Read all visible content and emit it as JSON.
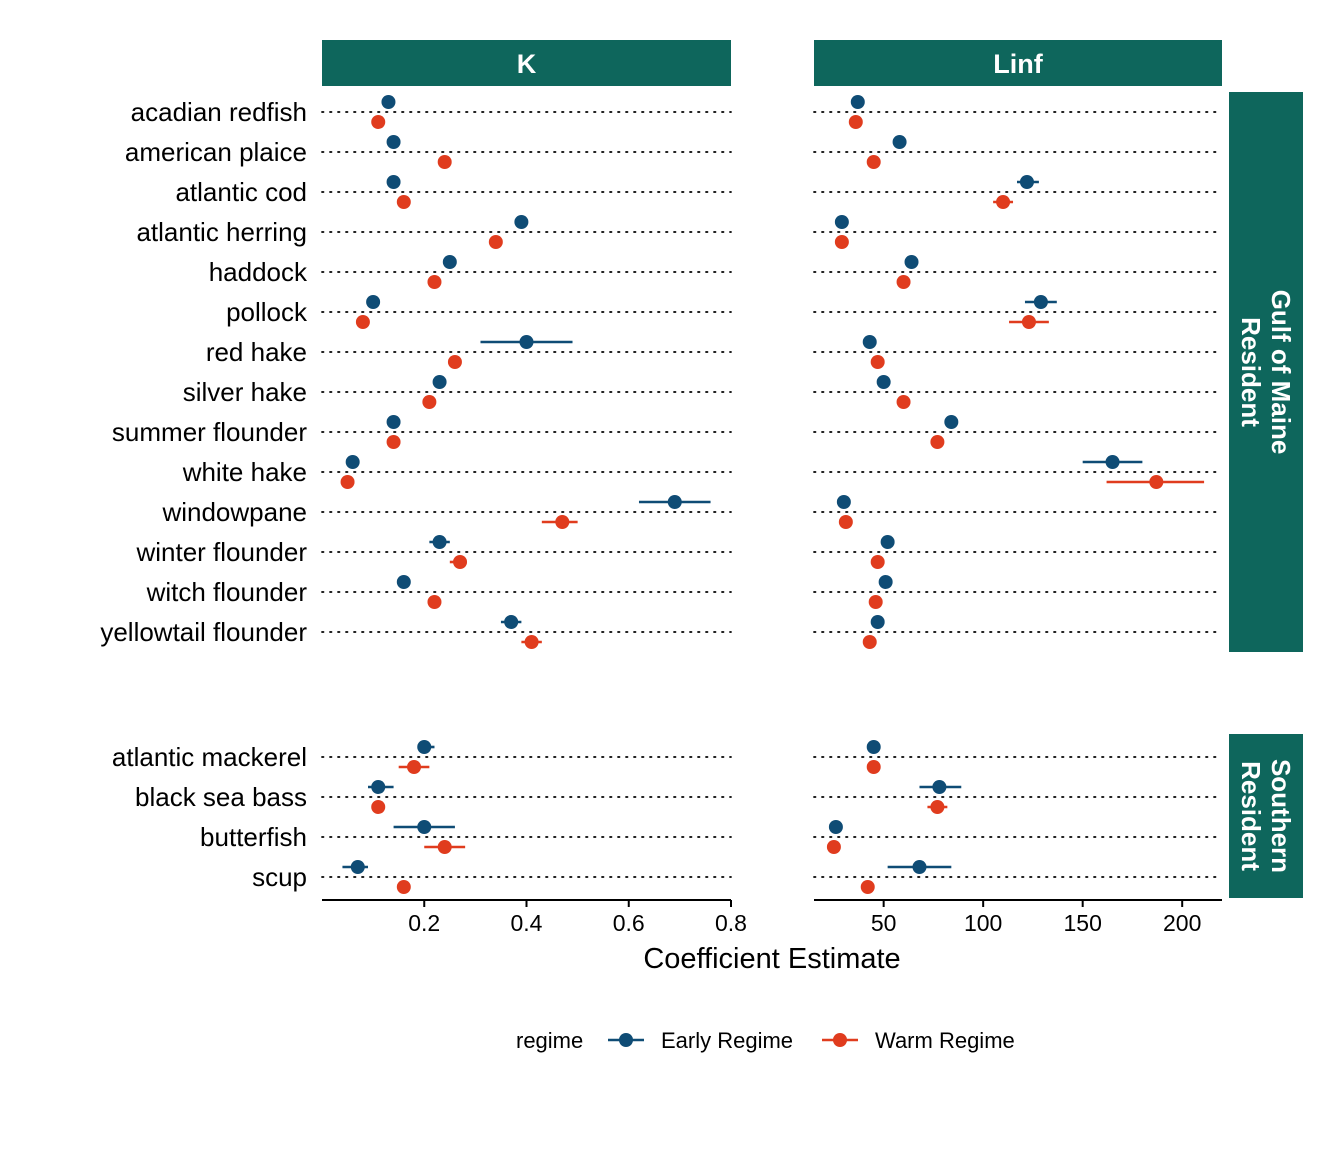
{
  "chart_data": {
    "type": "scatter",
    "subtype": "faceted dot plot with error bars",
    "xlabel": "Coefficient Estimate",
    "legend": {
      "title": "regime",
      "position": "bottom",
      "entries": [
        "Early Regime",
        "Warm Regime"
      ]
    },
    "colors": {
      "Early Regime": "#0f4c75",
      "Warm Regime": "#e03c1e",
      "strip": "#0e665c",
      "grid": "#000000"
    },
    "grid": "dotted horizontal per species",
    "columns": [
      {
        "name": "K",
        "xlim": [
          0.0,
          0.8
        ],
        "ticks": [
          0.2,
          0.4,
          0.6,
          0.8
        ],
        "tick_labels": [
          "0.2",
          "0.4",
          "0.6",
          "0.8"
        ]
      },
      {
        "name": "Linf",
        "xlim": [
          15,
          220
        ],
        "ticks": [
          50,
          100,
          150,
          200
        ],
        "tick_labels": [
          "50",
          "100",
          "150",
          "200"
        ]
      }
    ],
    "rows": [
      {
        "name": "Gulf of Maine Resident",
        "name_lines": [
          "Gulf of Maine",
          "Resident"
        ],
        "species": [
          "acadian redfish",
          "american plaice",
          "atlantic cod",
          "atlantic herring",
          "haddock",
          "pollock",
          "red hake",
          "silver hake",
          "summer flounder",
          "white hake",
          "windowpane",
          "winter flounder",
          "witch flounder",
          "yellowtail flounder"
        ]
      },
      {
        "name": "Southern Resident",
        "name_lines": [
          "Southern",
          "Resident"
        ],
        "species": [
          "atlantic mackerel",
          "black sea bass",
          "butterfish",
          "scup"
        ]
      }
    ],
    "series": [
      {
        "name": "Early Regime",
        "points": [
          {
            "species": "acadian redfish",
            "K": [
              0.13,
              0.13,
              0.14
            ],
            "Linf": [
              37,
              37,
              38
            ]
          },
          {
            "species": "american plaice",
            "K": [
              0.14,
              0.14,
              0.15
            ],
            "Linf": [
              58,
              57,
              59
            ]
          },
          {
            "species": "atlantic cod",
            "K": [
              0.14,
              0.14,
              0.15
            ],
            "Linf": [
              122,
              117,
              128
            ]
          },
          {
            "species": "atlantic herring",
            "K": [
              0.39,
              0.39,
              0.4
            ],
            "Linf": [
              29,
              29,
              30
            ]
          },
          {
            "species": "haddock",
            "K": [
              0.25,
              0.25,
              0.26
            ],
            "Linf": [
              64,
              63,
              65
            ]
          },
          {
            "species": "pollock",
            "K": [
              0.1,
              0.1,
              0.11
            ],
            "Linf": [
              129,
              121,
              137
            ]
          },
          {
            "species": "red hake",
            "K": [
              0.4,
              0.31,
              0.49
            ],
            "Linf": [
              43,
              43,
              44
            ]
          },
          {
            "species": "silver hake",
            "K": [
              0.23,
              0.23,
              0.24
            ],
            "Linf": [
              50,
              49,
              51
            ]
          },
          {
            "species": "summer flounder",
            "K": [
              0.14,
              0.13,
              0.15
            ],
            "Linf": [
              84,
              81,
              87
            ]
          },
          {
            "species": "white hake",
            "K": [
              0.06,
              0.06,
              0.07
            ],
            "Linf": [
              165,
              150,
              180
            ]
          },
          {
            "species": "windowpane",
            "K": [
              0.69,
              0.62,
              0.76
            ],
            "Linf": [
              30,
              30,
              31
            ]
          },
          {
            "species": "winter flounder",
            "K": [
              0.23,
              0.21,
              0.25
            ],
            "Linf": [
              52,
              51,
              53
            ]
          },
          {
            "species": "witch flounder",
            "K": [
              0.16,
              0.16,
              0.17
            ],
            "Linf": [
              51,
              50,
              52
            ]
          },
          {
            "species": "yellowtail flounder",
            "K": [
              0.37,
              0.35,
              0.39
            ],
            "Linf": [
              47,
              47,
              48
            ]
          },
          {
            "species": "atlantic mackerel",
            "K": [
              0.2,
              0.19,
              0.22
            ],
            "Linf": [
              45,
              45,
              46
            ]
          },
          {
            "species": "black sea bass",
            "K": [
              0.11,
              0.09,
              0.14
            ],
            "Linf": [
              78,
              68,
              89
            ]
          },
          {
            "species": "butterfish",
            "K": [
              0.2,
              0.14,
              0.26
            ],
            "Linf": [
              26,
              26,
              27
            ]
          },
          {
            "species": "scup",
            "K": [
              0.07,
              0.04,
              0.09
            ],
            "Linf": [
              68,
              52,
              84
            ]
          }
        ]
      },
      {
        "name": "Warm Regime",
        "points": [
          {
            "species": "acadian redfish",
            "K": [
              0.11,
              0.11,
              0.12
            ],
            "Linf": [
              36,
              35,
              37
            ]
          },
          {
            "species": "american plaice",
            "K": [
              0.24,
              0.24,
              0.25
            ],
            "Linf": [
              45,
              44,
              46
            ]
          },
          {
            "species": "atlantic cod",
            "K": [
              0.16,
              0.16,
              0.17
            ],
            "Linf": [
              110,
              105,
              115
            ]
          },
          {
            "species": "atlantic herring",
            "K": [
              0.34,
              0.33,
              0.35
            ],
            "Linf": [
              29,
              29,
              30
            ]
          },
          {
            "species": "haddock",
            "K": [
              0.22,
              0.22,
              0.23
            ],
            "Linf": [
              60,
              59,
              61
            ]
          },
          {
            "species": "pollock",
            "K": [
              0.08,
              0.08,
              0.09
            ],
            "Linf": [
              123,
              113,
              133
            ]
          },
          {
            "species": "red hake",
            "K": [
              0.26,
              0.26,
              0.27
            ],
            "Linf": [
              47,
              46,
              48
            ]
          },
          {
            "species": "silver hake",
            "K": [
              0.21,
              0.21,
              0.22
            ],
            "Linf": [
              60,
              59,
              61
            ]
          },
          {
            "species": "summer flounder",
            "K": [
              0.14,
              0.14,
              0.15
            ],
            "Linf": [
              77,
              75,
              79
            ]
          },
          {
            "species": "white hake",
            "K": [
              0.05,
              0.05,
              0.06
            ],
            "Linf": [
              187,
              162,
              211
            ]
          },
          {
            "species": "windowpane",
            "K": [
              0.47,
              0.43,
              0.5
            ],
            "Linf": [
              31,
              30,
              32
            ]
          },
          {
            "species": "winter flounder",
            "K": [
              0.27,
              0.25,
              0.28
            ],
            "Linf": [
              47,
              46,
              48
            ]
          },
          {
            "species": "witch flounder",
            "K": [
              0.22,
              0.22,
              0.23
            ],
            "Linf": [
              46,
              45,
              47
            ]
          },
          {
            "species": "yellowtail flounder",
            "K": [
              0.41,
              0.39,
              0.43
            ],
            "Linf": [
              43,
              43,
              44
            ]
          },
          {
            "species": "atlantic mackerel",
            "K": [
              0.18,
              0.15,
              0.21
            ],
            "Linf": [
              45,
              45,
              46
            ]
          },
          {
            "species": "black sea bass",
            "K": [
              0.11,
              0.11,
              0.12
            ],
            "Linf": [
              77,
              72,
              82
            ]
          },
          {
            "species": "butterfish",
            "K": [
              0.24,
              0.2,
              0.28
            ],
            "Linf": [
              25,
              25,
              26
            ]
          },
          {
            "species": "scup",
            "K": [
              0.16,
              0.16,
              0.17
            ],
            "Linf": [
              42,
              41,
              43
            ]
          }
        ]
      }
    ]
  }
}
